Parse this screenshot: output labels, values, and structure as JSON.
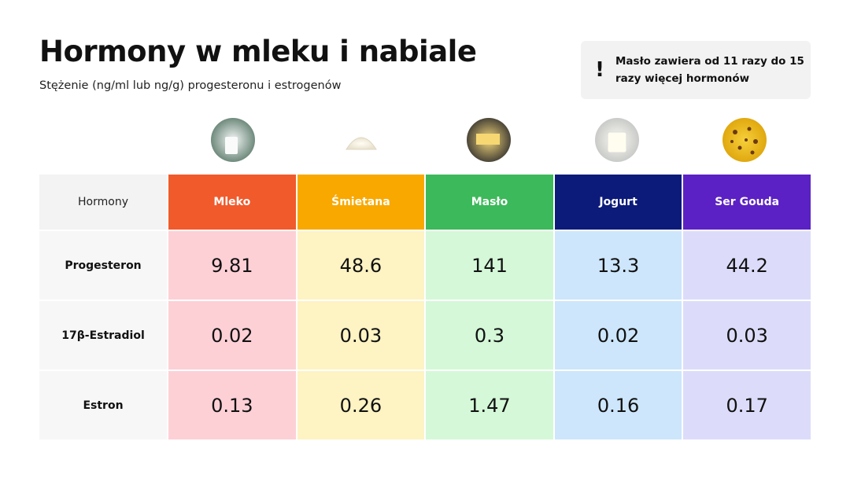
{
  "header": {
    "title": "Hormony w mleku i nabiale",
    "subtitle": "Stężenie (ng/ml lub ng/g) progesteronu i estrogenów"
  },
  "note": {
    "icon": "!",
    "text": "Masło zawiera od 11 razy do 15 razy więcej hormonów"
  },
  "table": {
    "header": [
      "Hormony",
      "Mleko",
      "Śmietana",
      "Masło",
      "Jogurt",
      "Ser Gouda"
    ],
    "rows": [
      [
        "Progesteron",
        "9.81",
        "48.6",
        "141",
        "13.3",
        "44.2"
      ],
      [
        "17β-Estradiol",
        "0.02",
        "0.03",
        "0.3",
        "0.02",
        "0.03"
      ],
      [
        "Estron",
        "0.13",
        "0.26",
        "1.47",
        "0.16",
        "0.17"
      ]
    ]
  }
}
